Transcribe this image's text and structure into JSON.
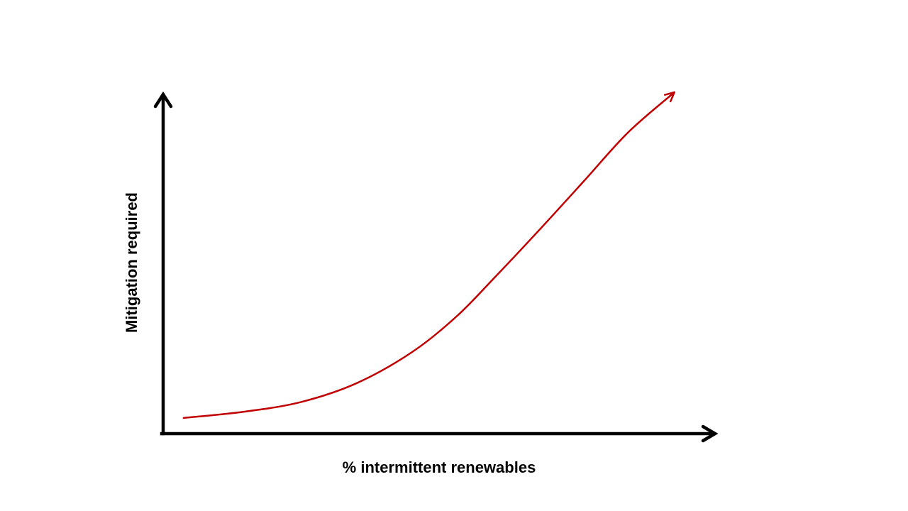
{
  "chart_data": {
    "type": "line",
    "title": "",
    "xlabel": "% intermittent renewables",
    "ylabel": "Mitigation required",
    "xlim": [
      0,
      10
    ],
    "ylim": [
      0,
      10
    ],
    "grid": false,
    "axes_style": "arrows",
    "series": [
      {
        "color": "#c00000",
        "end_arrow": true,
        "x": [
          0.37,
          1.5,
          2.5,
          3.5,
          4.5,
          5.3,
          6.0,
          6.8,
          7.6,
          8.4,
          9.24
        ],
        "y": [
          0.46,
          0.65,
          0.93,
          1.48,
          2.39,
          3.43,
          4.59,
          5.97,
          7.39,
          8.82,
          10.0
        ]
      }
    ],
    "colors": {
      "axis": "#000000",
      "curve": "#c00000"
    }
  }
}
